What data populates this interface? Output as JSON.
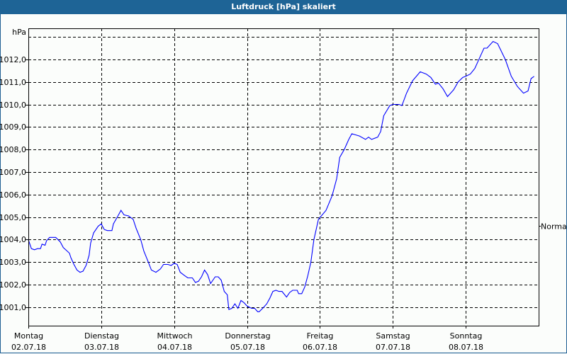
{
  "window": {
    "title": "Luftdruck [hPa] skaliert"
  },
  "chart_data": {
    "type": "line",
    "title": "Luftdruck [hPa] skaliert",
    "ylabel": "hPa",
    "ylim": [
      1000.18,
      1013.38
    ],
    "yticks": [
      1001,
      1002,
      1003,
      1004,
      1005,
      1006,
      1007,
      1008,
      1009,
      1010,
      1011,
      1012
    ],
    "ytick_labels": [
      "1001,0",
      "1002,0",
      "1003,0",
      "1004,0",
      "1005,0",
      "1006,0",
      "1007,0",
      "1008,0",
      "1009,0",
      "1010,0",
      "1011,0",
      "1012,0"
    ],
    "xlim": [
      "02.07.18 00:00",
      "09.07.18 00:00"
    ],
    "xtick_labels": [
      {
        "day": "Montag",
        "date": "02.07.18"
      },
      {
        "day": "Dienstag",
        "date": "03.07.18"
      },
      {
        "day": "Mittwoch",
        "date": "04.07.18"
      },
      {
        "day": "Donnerstag",
        "date": "05.07.18"
      },
      {
        "day": "Freitag",
        "date": "06.07.18"
      },
      {
        "day": "Samstag",
        "date": "07.07.18"
      },
      {
        "day": "Sonntag",
        "date": "08.07.18"
      }
    ],
    "grid": true,
    "line_color": "#0000ff",
    "reference": {
      "label": "Normal",
      "value": 1004.6
    },
    "series": [
      {
        "points": [
          [
            "02.07.18 00:00",
            1004.0
          ],
          [
            "02.07.18 01:00",
            1003.6
          ],
          [
            "02.07.18 02:00",
            1003.55
          ],
          [
            "02.07.18 03:00",
            1003.6
          ],
          [
            "02.07.18 04:00",
            1003.6
          ],
          [
            "02.07.18 04:30",
            1003.8
          ],
          [
            "02.07.18 05:30",
            1003.75
          ],
          [
            "02.07.18 06:00",
            1003.95
          ],
          [
            "02.07.18 07:00",
            1004.1
          ],
          [
            "02.07.18 08:00",
            1004.1
          ],
          [
            "02.07.18 09:00",
            1004.1
          ],
          [
            "02.07.18 10:30",
            1003.9
          ],
          [
            "02.07.18 11:30",
            1003.65
          ],
          [
            "02.07.18 13:30",
            1003.4
          ],
          [
            "02.07.18 14:00",
            1003.2
          ],
          [
            "02.07.18 15:00",
            1002.9
          ],
          [
            "02.07.18 16:00",
            1002.65
          ],
          [
            "02.07.18 17:00",
            1002.55
          ],
          [
            "02.07.18 18:00",
            1002.6
          ],
          [
            "02.07.18 19:00",
            1002.85
          ],
          [
            "02.07.18 20:00",
            1003.3
          ],
          [
            "02.07.18 20:30",
            1003.85
          ],
          [
            "02.07.18 21:30",
            1004.3
          ],
          [
            "02.07.18 23:00",
            1004.6
          ],
          [
            "03.07.18 00:00",
            1004.7
          ],
          [
            "03.07.18 01:00",
            1004.45
          ],
          [
            "03.07.18 02:00",
            1004.4
          ],
          [
            "03.07.18 03:30",
            1004.4
          ],
          [
            "03.07.18 04:00",
            1004.7
          ],
          [
            "03.07.18 05:30",
            1005.05
          ],
          [
            "03.07.18 06:30",
            1005.3
          ],
          [
            "03.07.18 07:30",
            1005.1
          ],
          [
            "03.07.18 09:00",
            1005.05
          ],
          [
            "03.07.18 10:30",
            1004.9
          ],
          [
            "03.07.18 11:30",
            1004.5
          ],
          [
            "03.07.18 13:00",
            1004.0
          ],
          [
            "03.07.18 14:00",
            1003.5
          ],
          [
            "03.07.18 15:30",
            1003.0
          ],
          [
            "03.07.18 16:30",
            1002.65
          ],
          [
            "03.07.18 18:00",
            1002.55
          ],
          [
            "03.07.18 19:30",
            1002.7
          ],
          [
            "03.07.18 20:30",
            1002.9
          ],
          [
            "03.07.18 22:00",
            1002.9
          ],
          [
            "03.07.18 23:00",
            1002.85
          ],
          [
            "04.07.18 00:00",
            1002.95
          ],
          [
            "04.07.18 01:00",
            1002.9
          ],
          [
            "04.07.18 02:00",
            1002.55
          ],
          [
            "04.07.18 03:30",
            1002.4
          ],
          [
            "04.07.18 04:30",
            1002.3
          ],
          [
            "04.07.18 06:00",
            1002.3
          ],
          [
            "04.07.18 07:00",
            1002.1
          ],
          [
            "04.07.18 08:00",
            1002.15
          ],
          [
            "04.07.18 09:00",
            1002.35
          ],
          [
            "04.07.18 10:00",
            1002.65
          ],
          [
            "04.07.18 11:00",
            1002.45
          ],
          [
            "04.07.18 12:00",
            1002.05
          ],
          [
            "04.07.18 13:30",
            1002.35
          ],
          [
            "04.07.18 14:30",
            1002.35
          ],
          [
            "04.07.18 15:30",
            1002.2
          ],
          [
            "04.07.18 16:30",
            1001.7
          ],
          [
            "04.07.18 17:30",
            1001.55
          ],
          [
            "04.07.18 18:00",
            1000.9
          ],
          [
            "04.07.18 19:00",
            1000.95
          ],
          [
            "04.07.18 20:00",
            1001.15
          ],
          [
            "04.07.18 21:00",
            1000.95
          ],
          [
            "04.07.18 22:00",
            1001.3
          ],
          [
            "04.07.18 23:00",
            1001.2
          ],
          [
            "05.07.18 00:00",
            1001.05
          ],
          [
            "05.07.18 01:30",
            1000.95
          ],
          [
            "05.07.18 02:30",
            1000.95
          ],
          [
            "05.07.18 03:30",
            1000.8
          ],
          [
            "05.07.18 04:00",
            1000.8
          ],
          [
            "05.07.18 05:30",
            1001.0
          ],
          [
            "05.07.18 06:30",
            1001.15
          ],
          [
            "05.07.18 07:30",
            1001.4
          ],
          [
            "05.07.18 08:30",
            1001.7
          ],
          [
            "05.07.18 09:30",
            1001.75
          ],
          [
            "05.07.18 10:30",
            1001.7
          ],
          [
            "05.07.18 11:30",
            1001.7
          ],
          [
            "05.07.18 13:00",
            1001.45
          ],
          [
            "05.07.18 14:00",
            1001.65
          ],
          [
            "05.07.18 15:00",
            1001.75
          ],
          [
            "05.07.18 16:30",
            1001.75
          ],
          [
            "05.07.18 17:00",
            1001.6
          ],
          [
            "05.07.18 18:00",
            1001.6
          ],
          [
            "05.07.18 19:00",
            1001.9
          ],
          [
            "05.07.18 20:00",
            1002.4
          ],
          [
            "05.07.18 21:00",
            1003.0
          ],
          [
            "05.07.18 22:00",
            1004.0
          ],
          [
            "05.07.18 23:30",
            1004.9
          ],
          [
            "06.07.18 02:00",
            1005.3
          ],
          [
            "06.07.18 04:00",
            1005.95
          ],
          [
            "06.07.18 05:30",
            1006.7
          ],
          [
            "06.07.18 06:30",
            1007.65
          ],
          [
            "06.07.18 08:00",
            1008.0
          ],
          [
            "06.07.18 09:30",
            1008.45
          ],
          [
            "06.07.18 10:30",
            1008.7
          ],
          [
            "06.07.18 13:00",
            1008.6
          ],
          [
            "06.07.18 15:00",
            1008.45
          ],
          [
            "06.07.18 16:00",
            1008.55
          ],
          [
            "06.07.18 17:00",
            1008.45
          ],
          [
            "06.07.18 19:00",
            1008.55
          ],
          [
            "06.07.18 20:00",
            1008.8
          ],
          [
            "06.07.18 21:00",
            1009.5
          ],
          [
            "06.07.18 23:00",
            1009.95
          ],
          [
            "07.07.18 00:00",
            1010.0
          ],
          [
            "07.07.18 02:00",
            1010.0
          ],
          [
            "07.07.18 03:00",
            1009.95
          ],
          [
            "07.07.18 04:30",
            1010.5
          ],
          [
            "07.07.18 06:30",
            1011.05
          ],
          [
            "07.07.18 09:00",
            1011.45
          ],
          [
            "07.07.18 11:00",
            1011.35
          ],
          [
            "07.07.18 12:30",
            1011.2
          ],
          [
            "07.07.18 14:00",
            1010.9
          ],
          [
            "07.07.18 15:00",
            1010.95
          ],
          [
            "07.07.18 16:30",
            1010.7
          ],
          [
            "07.07.18 18:00",
            1010.35
          ],
          [
            "07.07.18 20:00",
            1010.65
          ],
          [
            "07.07.18 21:30",
            1011.0
          ],
          [
            "07.07.18 23:00",
            1011.2
          ],
          [
            "08.07.18 00:00",
            1011.25
          ],
          [
            "08.07.18 01:30",
            1011.35
          ],
          [
            "08.07.18 03:00",
            1011.6
          ],
          [
            "08.07.18 04:30",
            1012.05
          ],
          [
            "08.07.18 06:00",
            1012.5
          ],
          [
            "08.07.18 07:00",
            1012.5
          ],
          [
            "08.07.18 09:00",
            1012.8
          ],
          [
            "08.07.18 10:30",
            1012.7
          ],
          [
            "08.07.18 13:00",
            1012.0
          ],
          [
            "08.07.18 15:00",
            1011.25
          ],
          [
            "08.07.18 17:00",
            1010.8
          ],
          [
            "08.07.18 19:00",
            1010.5
          ],
          [
            "08.07.18 20:30",
            1010.6
          ],
          [
            "08.07.18 21:30",
            1011.15
          ],
          [
            "08.07.18 22:30",
            1011.25
          ]
        ]
      }
    ]
  }
}
